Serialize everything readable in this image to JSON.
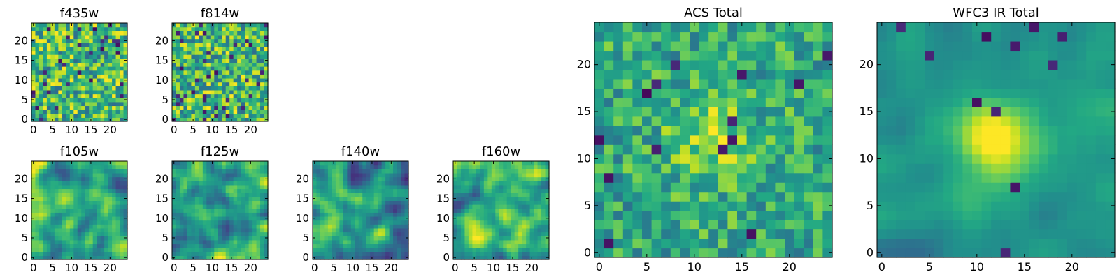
{
  "colors": {
    "colormap": "viridis",
    "background": "#ffffff",
    "frame": "#000000"
  },
  "chart_data": [
    {
      "id": "f435w",
      "type": "heatmap",
      "title": "f435w",
      "grid_shape": [
        25,
        25
      ],
      "xlim": [
        0,
        24
      ],
      "ylim": [
        0,
        24
      ],
      "x_ticks": [
        "0",
        "5",
        "10",
        "15",
        "20"
      ],
      "y_ticks": [
        "0",
        "5",
        "10",
        "15",
        "20"
      ],
      "y_origin": "lower",
      "texture": "noise",
      "seed": 11
    },
    {
      "id": "f814w",
      "type": "heatmap",
      "title": "f814w",
      "grid_shape": [
        25,
        25
      ],
      "xlim": [
        0,
        24
      ],
      "ylim": [
        0,
        24
      ],
      "x_ticks": [
        "0",
        "5",
        "10",
        "15",
        "20"
      ],
      "y_ticks": [
        "0",
        "5",
        "10",
        "15",
        "20"
      ],
      "y_origin": "lower",
      "texture": "noise",
      "seed": 23
    },
    {
      "id": "f105w",
      "type": "heatmap",
      "title": "f105w",
      "grid_shape": [
        25,
        25
      ],
      "xlim": [
        0,
        24
      ],
      "ylim": [
        0,
        24
      ],
      "x_ticks": [
        "0",
        "5",
        "10",
        "15",
        "20"
      ],
      "y_ticks": [
        "0",
        "5",
        "10",
        "15",
        "20"
      ],
      "y_origin": "lower",
      "texture": "smooth",
      "seed": 37
    },
    {
      "id": "f125w",
      "type": "heatmap",
      "title": "f125w",
      "grid_shape": [
        25,
        25
      ],
      "xlim": [
        0,
        24
      ],
      "ylim": [
        0,
        24
      ],
      "x_ticks": [
        "0",
        "5",
        "10",
        "15",
        "20"
      ],
      "y_ticks": [
        "0",
        "5",
        "10",
        "15",
        "20"
      ],
      "y_origin": "lower",
      "texture": "smooth",
      "seed": 41
    },
    {
      "id": "f140w",
      "type": "heatmap",
      "title": "f140w",
      "grid_shape": [
        25,
        25
      ],
      "xlim": [
        0,
        24
      ],
      "ylim": [
        0,
        24
      ],
      "x_ticks": [
        "0",
        "5",
        "10",
        "15",
        "20"
      ],
      "y_ticks": [
        "0",
        "5",
        "10",
        "15",
        "20"
      ],
      "y_origin": "lower",
      "texture": "smooth-dark",
      "seed": 53
    },
    {
      "id": "f160w",
      "type": "heatmap",
      "title": "f160w",
      "grid_shape": [
        25,
        25
      ],
      "xlim": [
        0,
        24
      ],
      "ylim": [
        0,
        24
      ],
      "x_ticks": [
        "0",
        "5",
        "10",
        "15",
        "20"
      ],
      "y_ticks": [
        "0",
        "5",
        "10",
        "15",
        "20"
      ],
      "y_origin": "lower",
      "texture": "smooth",
      "seed": 67
    },
    {
      "id": "acs_total",
      "type": "heatmap",
      "title": "ACS Total",
      "grid_shape": [
        25,
        25
      ],
      "xlim": [
        0,
        24
      ],
      "ylim": [
        0,
        24
      ],
      "x_ticks": [
        "0",
        "5",
        "10",
        "15",
        "20"
      ],
      "y_ticks": [
        "0",
        "5",
        "10",
        "15",
        "20"
      ],
      "y_origin": "lower",
      "texture": "noise-center",
      "seed": 79
    },
    {
      "id": "wfc3_ir_total",
      "type": "heatmap",
      "title": "WFC3 IR Total",
      "grid_shape": [
        25,
        25
      ],
      "xlim": [
        0,
        24
      ],
      "ylim": [
        0,
        24
      ],
      "x_ticks": [
        "0",
        "5",
        "10",
        "15",
        "20"
      ],
      "y_ticks": [
        "0",
        "5",
        "10",
        "15",
        "20"
      ],
      "y_origin": "lower",
      "texture": "center-blob",
      "seed": 97
    }
  ]
}
